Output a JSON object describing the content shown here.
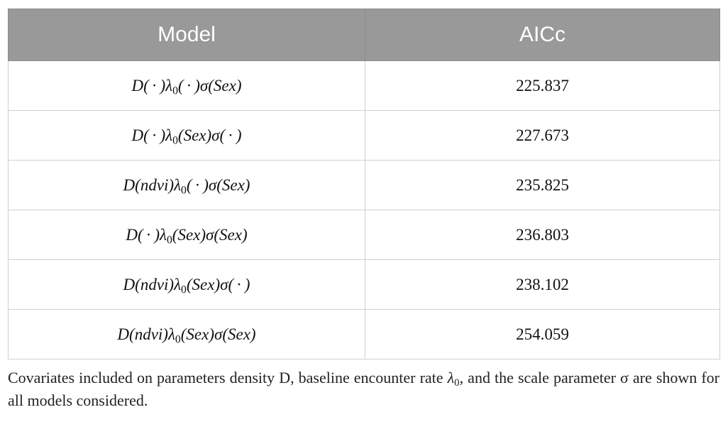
{
  "table": {
    "headers": [
      "Model",
      "AICc"
    ],
    "rows": [
      {
        "D": "·",
        "lambda": "·",
        "sigma": "Sex",
        "aicc": "225.837"
      },
      {
        "D": "·",
        "lambda": "Sex",
        "sigma": "·",
        "aicc": "227.673"
      },
      {
        "D": "ndvi",
        "lambda": "·",
        "sigma": "Sex",
        "aicc": "235.825"
      },
      {
        "D": "·",
        "lambda": "Sex",
        "sigma": "Sex",
        "aicc": "236.803"
      },
      {
        "D": "ndvi",
        "lambda": "Sex",
        "sigma": "·",
        "aicc": "238.102"
      },
      {
        "D": "ndvi",
        "lambda": "Sex",
        "sigma": "Sex",
        "aicc": "254.059"
      }
    ]
  },
  "caption": {
    "part1": "Covariates included on parameters density D, baseline encounter rate ",
    "lambda_symbol": "λ",
    "lambda_sub": "0",
    "part2": ", and the scale parameter ",
    "sigma_symbol": "σ",
    "part3": " are shown for all models considered."
  },
  "colors": {
    "header_bg": "#999999",
    "header_text": "#ffffff",
    "border": "#d0d0d0"
  }
}
